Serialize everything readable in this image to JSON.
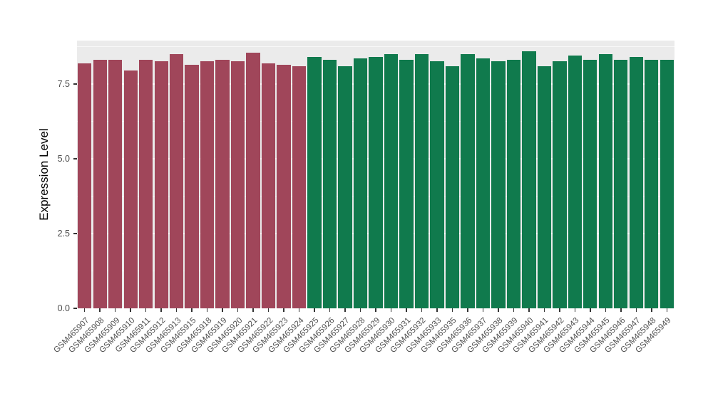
{
  "chart_data": {
    "type": "bar",
    "title": "",
    "xlabel": "",
    "ylabel": "Expression Level",
    "ylim": [
      0,
      8.95
    ],
    "yticks": [
      0.0,
      2.5,
      5.0,
      7.5
    ],
    "ytick_labels": [
      "0.0",
      "2.5",
      "5.0",
      "7.5"
    ],
    "minor_gridlines": [
      1.25,
      3.75,
      6.25,
      8.75
    ],
    "grid": true,
    "legend_position": "none",
    "bar_width_fraction": 0.9,
    "categories": [
      "GSM465907",
      "GSM465908",
      "GSM465909",
      "GSM465910",
      "GSM465911",
      "GSM465912",
      "GSM465913",
      "GSM465915",
      "GSM465918",
      "GSM465919",
      "GSM465920",
      "GSM465921",
      "GSM465922",
      "GSM465923",
      "GSM465924",
      "GSM465925",
      "GSM465926",
      "GSM465927",
      "GSM465928",
      "GSM465929",
      "GSM465930",
      "GSM465931",
      "GSM465932",
      "GSM465933",
      "GSM465935",
      "GSM465936",
      "GSM465937",
      "GSM465938",
      "GSM465939",
      "GSM465940",
      "GSM465941",
      "GSM465942",
      "GSM465943",
      "GSM465944",
      "GSM465945",
      "GSM465946",
      "GSM465947",
      "GSM465948",
      "GSM465949"
    ],
    "values": [
      8.2,
      8.3,
      8.3,
      7.95,
      8.3,
      8.25,
      8.5,
      8.15,
      8.25,
      8.3,
      8.25,
      8.55,
      8.2,
      8.15,
      8.1,
      8.4,
      8.3,
      8.1,
      8.35,
      8.4,
      8.5,
      8.3,
      8.5,
      8.25,
      8.1,
      8.5,
      8.35,
      8.25,
      8.3,
      8.6,
      8.1,
      8.25,
      8.45,
      8.3,
      8.5,
      8.3,
      8.4,
      8.3,
      8.3
    ],
    "groups": [
      "A",
      "A",
      "A",
      "A",
      "A",
      "A",
      "A",
      "A",
      "A",
      "A",
      "A",
      "A",
      "A",
      "A",
      "A",
      "B",
      "B",
      "B",
      "B",
      "B",
      "B",
      "B",
      "B",
      "B",
      "B",
      "B",
      "B",
      "B",
      "B",
      "B",
      "B",
      "B",
      "B",
      "B",
      "B",
      "B",
      "B",
      "B",
      "B"
    ],
    "group_colors": {
      "A": "#A0465A",
      "B": "#107A4D"
    }
  },
  "style": {
    "panel_background": "#EBEBEB",
    "gridline_color": "#FFFFFF",
    "tick_text_color": "#4D4D4D",
    "axis_title_color": "#000000",
    "figure_background": "#FFFFFF"
  }
}
